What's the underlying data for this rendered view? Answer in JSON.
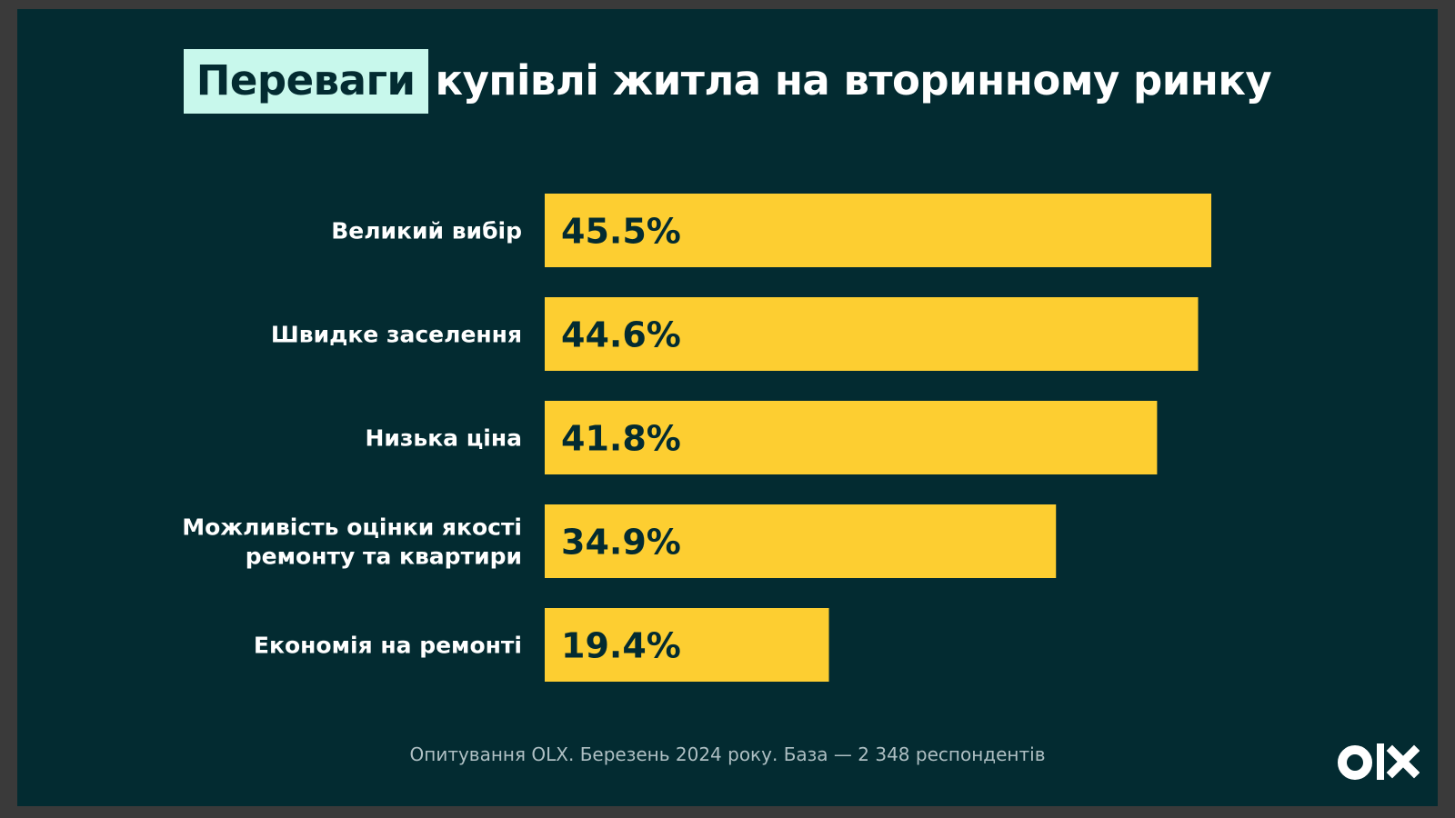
{
  "title": {
    "highlight": "Переваги",
    "rest": "купівлі житла на вторинному ринку"
  },
  "colors": {
    "background": "#032b31",
    "bar": "#fdce31",
    "highlight_bg": "#c8f8ec",
    "text": "#ffffff",
    "value_text": "#032b31"
  },
  "chart_data": {
    "type": "bar",
    "orientation": "horizontal",
    "categories": [
      [
        "Великий вибір"
      ],
      [
        "Швидке заселення"
      ],
      [
        "Низька ціна"
      ],
      [
        "Можливість оцінки якості",
        "ремонту та квартири"
      ],
      [
        "Економія на ремонті"
      ]
    ],
    "values": [
      45.5,
      44.6,
      41.8,
      34.9,
      19.4
    ],
    "value_labels": [
      "45.5%",
      "44.6%",
      "41.8%",
      "34.9%",
      "19.4%"
    ],
    "xlim": [
      0,
      45.5
    ]
  },
  "footnote": "Опитування OLX. Березень 2024 року. База — 2 348 респондентів",
  "logo": {
    "text": "OLX",
    "icon": "olx-logo"
  }
}
